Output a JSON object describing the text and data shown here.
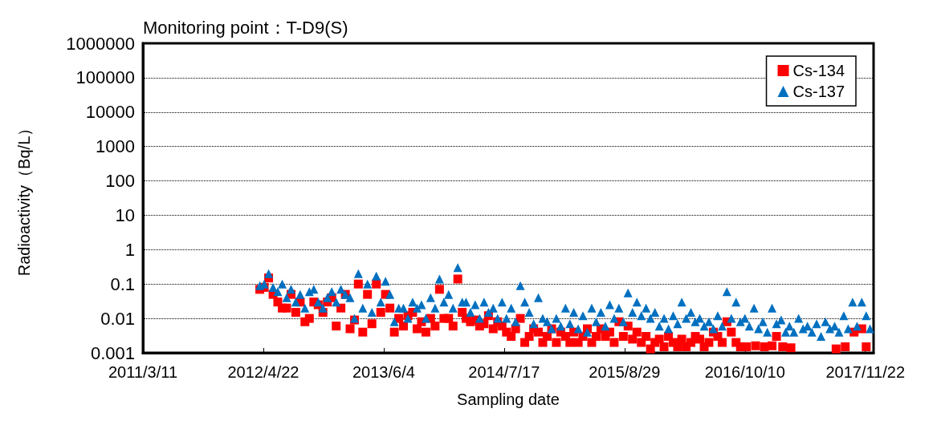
{
  "chart_data": {
    "type": "scatter",
    "title": "Monitoring point：T-D9(S)",
    "xlabel": "Sampling date",
    "ylabel": "Radioactivity（Bq/L）",
    "log": "y",
    "grid": "y",
    "legend": "top right",
    "xlim": [
      "2011-03-11",
      "2017-12-20"
    ],
    "xticks": [
      {
        "value": "2011-03-11",
        "label": "2011/3/11"
      },
      {
        "value": "2012-04-22",
        "label": "2012/4/22"
      },
      {
        "value": "2013-06-04",
        "label": "2013/6/4"
      },
      {
        "value": "2014-07-17",
        "label": "2014/7/17"
      },
      {
        "value": "2015-08-29",
        "label": "2015/8/29"
      },
      {
        "value": "2016-10-10",
        "label": "2016/10/10"
      },
      {
        "value": "2017-11-22",
        "label": "2017/11/22"
      }
    ],
    "ylim": [
      0.001,
      1000000
    ],
    "yticks": [
      0.001,
      0.01,
      0.1,
      1,
      10,
      100,
      1000,
      10000,
      100000,
      1000000
    ],
    "series": [
      {
        "name": "Cs-134",
        "color": "#ff0000",
        "marker": "square",
        "x": [
          "2012-04-10",
          "2012-04-25",
          "2012-05-10",
          "2012-05-25",
          "2012-06-10",
          "2012-06-25",
          "2012-07-10",
          "2012-07-25",
          "2012-08-10",
          "2012-08-25",
          "2012-09-10",
          "2012-09-25",
          "2012-10-10",
          "2012-10-25",
          "2012-11-10",
          "2012-11-25",
          "2012-12-10",
          "2012-12-25",
          "2013-01-10",
          "2013-01-25",
          "2013-02-10",
          "2013-02-25",
          "2013-03-10",
          "2013-03-25",
          "2013-04-10",
          "2013-04-25",
          "2013-05-10",
          "2013-05-25",
          "2013-06-10",
          "2013-06-25",
          "2013-07-10",
          "2013-07-25",
          "2013-08-10",
          "2013-08-25",
          "2013-09-10",
          "2013-09-25",
          "2013-10-10",
          "2013-10-25",
          "2013-11-10",
          "2013-11-25",
          "2013-12-10",
          "2013-12-25",
          "2014-01-10",
          "2014-01-25",
          "2014-02-10",
          "2014-02-25",
          "2014-03-10",
          "2014-03-25",
          "2014-04-10",
          "2014-04-25",
          "2014-05-10",
          "2014-05-25",
          "2014-06-10",
          "2014-06-25",
          "2014-07-10",
          "2014-07-25",
          "2014-08-10",
          "2014-08-25",
          "2014-09-10",
          "2014-09-25",
          "2014-10-10",
          "2014-10-25",
          "2014-11-10",
          "2014-11-25",
          "2014-12-10",
          "2014-12-25",
          "2015-01-10",
          "2015-01-25",
          "2015-02-10",
          "2015-02-25",
          "2015-03-10",
          "2015-03-25",
          "2015-04-10",
          "2015-04-25",
          "2015-05-10",
          "2015-05-25",
          "2015-06-10",
          "2015-06-25",
          "2015-07-10",
          "2015-07-25",
          "2015-08-10",
          "2015-08-25",
          "2015-09-10",
          "2015-09-25",
          "2015-10-10",
          "2015-10-25",
          "2015-11-10",
          "2015-11-25",
          "2015-12-10",
          "2015-12-25",
          "2016-01-10",
          "2016-01-25",
          "2016-02-10",
          "2016-02-25",
          "2016-03-10",
          "2016-03-25",
          "2016-04-10",
          "2016-04-25",
          "2016-05-10",
          "2016-05-25",
          "2016-06-10",
          "2016-06-25",
          "2016-07-10",
          "2016-07-25",
          "2016-08-10",
          "2016-08-25",
          "2016-09-10",
          "2016-09-25",
          "2016-10-15",
          "2016-11-15",
          "2016-12-15",
          "2017-01-10",
          "2017-01-25",
          "2017-02-15",
          "2017-03-15",
          "2017-08-15",
          "2017-09-15",
          "2017-10-15",
          "2017-11-10",
          "2017-11-25"
        ],
        "values": [
          0.07,
          0.08,
          0.15,
          0.05,
          0.03,
          0.02,
          0.02,
          0.05,
          0.015,
          0.03,
          0.008,
          0.01,
          0.03,
          0.025,
          0.015,
          0.03,
          0.04,
          0.006,
          0.02,
          0.05,
          0.005,
          0.009,
          0.1,
          0.004,
          0.05,
          0.007,
          0.1,
          0.015,
          0.05,
          0.02,
          0.004,
          0.01,
          0.006,
          0.012,
          0.015,
          0.005,
          0.008,
          0.004,
          0.01,
          0.006,
          0.07,
          0.01,
          0.01,
          0.006,
          0.14,
          0.015,
          0.01,
          0.008,
          0.009,
          0.006,
          0.007,
          0.012,
          0.005,
          0.008,
          0.006,
          0.004,
          0.003,
          0.005,
          0.01,
          0.002,
          0.003,
          0.005,
          0.004,
          0.002,
          0.003,
          0.005,
          0.002,
          0.004,
          0.003,
          0.002,
          0.004,
          0.002,
          0.003,
          0.005,
          0.002,
          0.003,
          0.005,
          0.003,
          0.004,
          0.002,
          0.008,
          0.003,
          0.006,
          0.0025,
          0.004,
          0.002,
          0.003,
          0.0013,
          0.002,
          0.0025,
          0.0015,
          0.003,
          0.002,
          0.0015,
          0.0025,
          0.0015,
          0.002,
          0.003,
          0.0025,
          0.0015,
          0.002,
          0.004,
          0.003,
          0.002,
          0.008,
          0.004,
          0.002,
          0.0015,
          0.0015,
          0.0016,
          0.0015,
          0.0016,
          0.003,
          0.0015,
          0.0014,
          0.0013,
          0.0015,
          0.004,
          0.005,
          0.0015
        ]
      },
      {
        "name": "Cs-137",
        "color": "#0070c0",
        "marker": "triangle",
        "x": [
          "2012-04-10",
          "2012-04-25",
          "2012-05-10",
          "2012-05-25",
          "2012-06-10",
          "2012-06-25",
          "2012-07-10",
          "2012-07-25",
          "2012-08-10",
          "2012-08-25",
          "2012-09-10",
          "2012-09-25",
          "2012-10-10",
          "2012-10-25",
          "2012-11-10",
          "2012-11-25",
          "2012-12-10",
          "2012-12-25",
          "2013-01-10",
          "2013-01-25",
          "2013-02-10",
          "2013-02-25",
          "2013-03-10",
          "2013-03-25",
          "2013-04-10",
          "2013-04-25",
          "2013-05-10",
          "2013-05-25",
          "2013-06-10",
          "2013-06-25",
          "2013-07-10",
          "2013-07-25",
          "2013-08-10",
          "2013-08-25",
          "2013-09-10",
          "2013-09-25",
          "2013-10-10",
          "2013-10-25",
          "2013-11-10",
          "2013-11-25",
          "2013-12-10",
          "2013-12-25",
          "2014-01-10",
          "2014-01-25",
          "2014-02-10",
          "2014-02-25",
          "2014-03-10",
          "2014-03-25",
          "2014-04-10",
          "2014-04-25",
          "2014-05-10",
          "2014-05-25",
          "2014-06-10",
          "2014-06-25",
          "2014-07-10",
          "2014-07-25",
          "2014-08-10",
          "2014-08-25",
          "2014-09-10",
          "2014-09-25",
          "2014-10-10",
          "2014-10-25",
          "2014-11-10",
          "2014-11-25",
          "2014-12-10",
          "2014-12-25",
          "2015-01-10",
          "2015-01-25",
          "2015-02-10",
          "2015-02-25",
          "2015-03-10",
          "2015-03-25",
          "2015-04-10",
          "2015-04-25",
          "2015-05-10",
          "2015-05-25",
          "2015-06-10",
          "2015-06-25",
          "2015-07-10",
          "2015-07-25",
          "2015-08-10",
          "2015-08-25",
          "2015-09-10",
          "2015-09-25",
          "2015-10-10",
          "2015-10-25",
          "2015-11-10",
          "2015-11-25",
          "2015-12-10",
          "2015-12-25",
          "2016-01-10",
          "2016-01-25",
          "2016-02-10",
          "2016-02-25",
          "2016-03-10",
          "2016-03-25",
          "2016-04-10",
          "2016-04-25",
          "2016-05-10",
          "2016-05-25",
          "2016-06-10",
          "2016-06-25",
          "2016-07-10",
          "2016-07-25",
          "2016-08-10",
          "2016-08-25",
          "2016-09-10",
          "2016-09-25",
          "2016-10-10",
          "2016-10-25",
          "2016-11-10",
          "2016-11-25",
          "2016-12-10",
          "2016-12-25",
          "2017-01-10",
          "2017-01-25",
          "2017-02-10",
          "2017-02-25",
          "2017-03-10",
          "2017-03-25",
          "2017-04-10",
          "2017-04-25",
          "2017-05-10",
          "2017-05-25",
          "2017-06-10",
          "2017-06-25",
          "2017-07-10",
          "2017-07-25",
          "2017-08-10",
          "2017-08-25",
          "2017-09-10",
          "2017-09-25",
          "2017-10-10",
          "2017-10-25",
          "2017-11-10",
          "2017-11-25",
          "2017-12-08"
        ],
        "values": [
          0.09,
          0.1,
          0.2,
          0.08,
          0.06,
          0.1,
          0.04,
          0.07,
          0.03,
          0.05,
          0.02,
          0.06,
          0.07,
          0.03,
          0.02,
          0.04,
          0.06,
          0.03,
          0.07,
          0.05,
          0.04,
          0.01,
          0.2,
          0.02,
          0.1,
          0.015,
          0.17,
          0.03,
          0.12,
          0.05,
          0.008,
          0.02,
          0.02,
          0.01,
          0.03,
          0.02,
          0.025,
          0.01,
          0.04,
          0.02,
          0.14,
          0.03,
          0.05,
          0.02,
          0.3,
          0.03,
          0.03,
          0.015,
          0.025,
          0.01,
          0.03,
          0.015,
          0.02,
          0.01,
          0.03,
          0.01,
          0.02,
          0.008,
          0.09,
          0.03,
          0.015,
          0.007,
          0.04,
          0.01,
          0.008,
          0.005,
          0.01,
          0.006,
          0.02,
          0.007,
          0.015,
          0.005,
          0.012,
          0.004,
          0.02,
          0.008,
          0.015,
          0.006,
          0.025,
          0.01,
          0.02,
          0.008,
          0.055,
          0.015,
          0.03,
          0.012,
          0.02,
          0.01,
          0.015,
          0.006,
          0.01,
          0.005,
          0.012,
          0.007,
          0.03,
          0.01,
          0.015,
          0.008,
          0.01,
          0.006,
          0.008,
          0.005,
          0.012,
          0.006,
          0.06,
          0.01,
          0.03,
          0.008,
          0.01,
          0.006,
          0.02,
          0.005,
          0.008,
          0.004,
          0.02,
          0.007,
          0.009,
          0.004,
          0.006,
          0.004,
          0.01,
          0.005,
          0.006,
          0.004,
          0.007,
          0.003,
          0.008,
          0.005,
          0.006,
          0.004,
          0.012,
          0.005,
          0.03,
          0.006,
          0.03,
          0.012,
          0.005
        ]
      }
    ]
  }
}
